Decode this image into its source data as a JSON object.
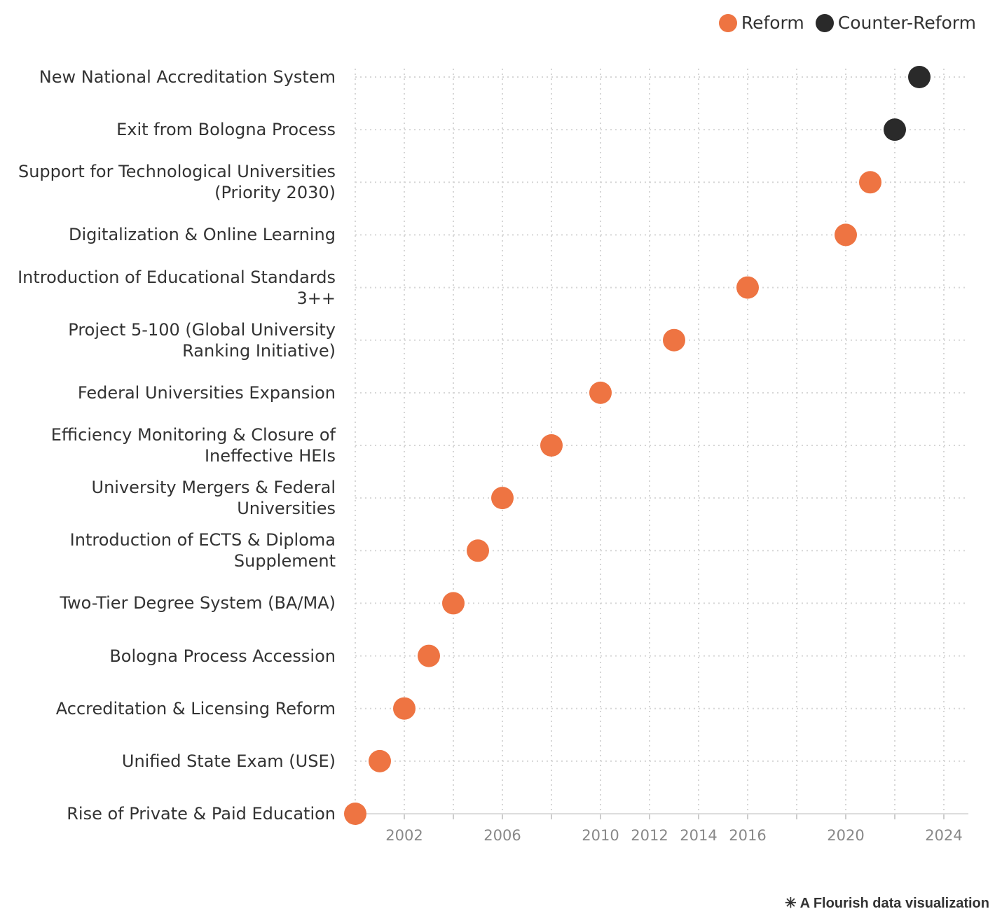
{
  "chart_data": {
    "type": "dot",
    "categories": [
      "New National Accreditation System",
      "Exit from Bologna Process",
      "Support for Technological Universities (Priority 2030)",
      "Digitalization & Online Learning",
      "Introduction of Educational Standards 3++",
      "Project 5-100 (Global University Ranking Initiative)",
      "Federal Universities Expansion",
      "Efficiency Monitoring & Closure of Ineffective HEIs",
      "University Mergers & Federal Universities",
      "Introduction of ECTS & Diploma Supplement",
      "Two-Tier Degree System (BA/MA)",
      "Bologna Process Accession",
      "Accreditation & Licensing Reform",
      "Unified State Exam (USE)",
      "Rise of Private & Paid Education"
    ],
    "series": [
      {
        "name": "Reform",
        "color": "#ee7442",
        "values": [
          null,
          null,
          2021,
          2020,
          2016,
          2013,
          2010,
          2008,
          2006,
          2005,
          2004,
          2003,
          2002,
          2001,
          2000
        ]
      },
      {
        "name": "Counter-Reform",
        "color": "#2a2a2a",
        "values": [
          2023,
          2022,
          null,
          null,
          null,
          null,
          null,
          null,
          null,
          null,
          null,
          null,
          null,
          null,
          null
        ]
      }
    ],
    "xlim": [
      2000,
      2025
    ],
    "xticks": [
      {
        "value": 2000,
        "label": null
      },
      2002,
      {
        "value": 2004,
        "label": null
      },
      2006,
      {
        "value": 2008,
        "label": null
      },
      2010,
      2012,
      2014,
      2016,
      {
        "value": 2018,
        "label": null
      },
      2020,
      {
        "value": 2022,
        "label": null
      },
      2024
    ],
    "grid": true,
    "legend": "top-right",
    "footer": "A Flourish data visualization"
  }
}
